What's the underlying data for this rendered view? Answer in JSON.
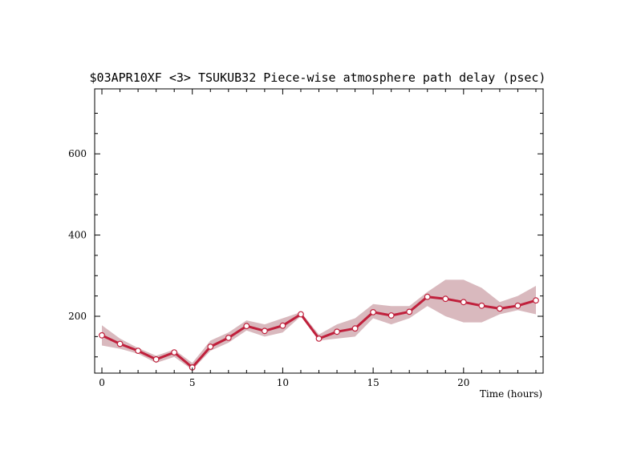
{
  "chart_data": {
    "type": "line",
    "title": "$03APR10XF <3>  TSUKUB32  Piece-wise atmosphere path delay (psec)",
    "xlabel": "Time (hours)",
    "ylabel": "",
    "xlim": [
      -0.4,
      24.4
    ],
    "ylim": [
      60,
      760
    ],
    "x_ticks": [
      0,
      5,
      10,
      15,
      20
    ],
    "y_ticks": [
      200,
      400,
      600
    ],
    "grid": false,
    "series": [
      {
        "x": [
          0,
          1,
          2,
          3,
          4,
          5,
          6,
          7,
          8,
          9,
          10,
          11,
          12,
          13,
          14,
          15,
          16,
          17,
          18,
          19,
          20,
          21,
          22,
          23,
          24
        ],
        "values": [
          153,
          132,
          115,
          94,
          111,
          74,
          125,
          147,
          176,
          164,
          177,
          205,
          145,
          162,
          170,
          210,
          202,
          211,
          248,
          243,
          235,
          226,
          219,
          226,
          239
        ],
        "band_upper": [
          178,
          145,
          122,
          103,
          118,
          85,
          140,
          160,
          190,
          180,
          195,
          210,
          155,
          180,
          195,
          230,
          225,
          225,
          260,
          290,
          290,
          270,
          235,
          250,
          275
        ],
        "band_lower": [
          128,
          120,
          108,
          85,
          100,
          68,
          115,
          135,
          165,
          150,
          160,
          200,
          140,
          145,
          150,
          195,
          180,
          195,
          225,
          200,
          185,
          185,
          205,
          215,
          205
        ],
        "color": "#c0203c",
        "band_color": "#d9b9be"
      }
    ]
  }
}
